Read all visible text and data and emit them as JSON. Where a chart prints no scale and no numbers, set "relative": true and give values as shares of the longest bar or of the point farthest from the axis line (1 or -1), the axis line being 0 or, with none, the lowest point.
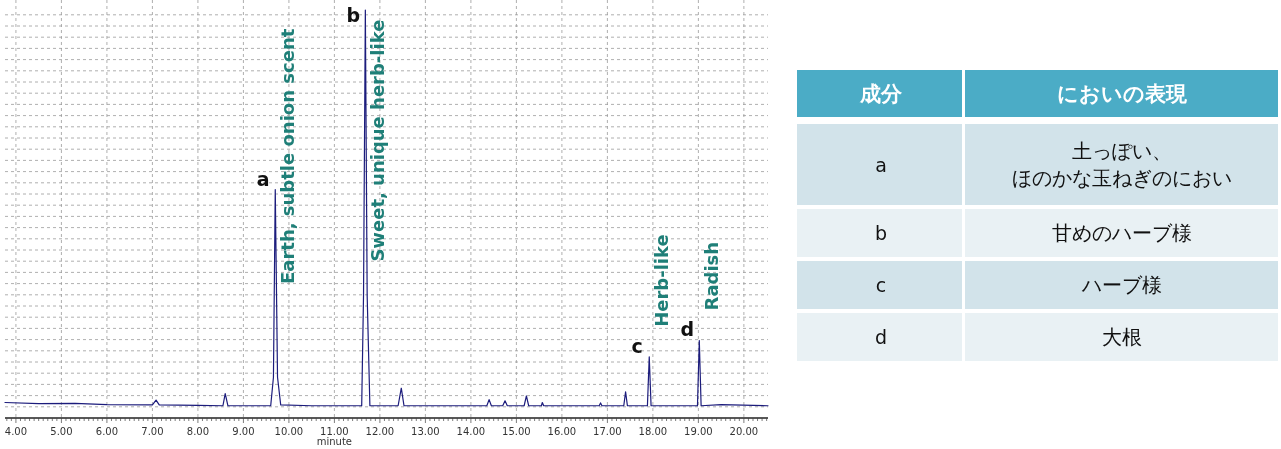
{
  "chart_data": [
    {
      "type": "line",
      "xlabel": "minute",
      "relative": true,
      "grid": true,
      "xlim": [
        3.76,
        20.53
      ],
      "xticks": [
        {
          "value": 4,
          "label": "4.00"
        },
        {
          "value": 5,
          "label": "5.00"
        },
        {
          "value": 6,
          "label": "6.00"
        },
        {
          "value": 7,
          "label": "7.00"
        },
        {
          "value": 8,
          "label": "8.00"
        },
        {
          "value": 9,
          "label": "9.00"
        },
        {
          "value": 10,
          "label": "10.00"
        },
        {
          "value": 11,
          "label": "11.00"
        },
        {
          "value": 12,
          "label": "12.00"
        },
        {
          "value": 13,
          "label": "13.00"
        },
        {
          "value": 14,
          "label": "14.00"
        },
        {
          "value": 15,
          "label": "15.00"
        },
        {
          "value": 16,
          "label": "16.00"
        },
        {
          "value": 17,
          "label": "17.00"
        },
        {
          "value": 18,
          "label": "18.00"
        },
        {
          "value": 19,
          "label": "19.00"
        },
        {
          "value": 20,
          "label": "20.00"
        }
      ],
      "x": [
        3.76,
        4.5,
        5.3,
        6.0,
        7.0,
        7.08,
        7.15,
        8.0,
        8.55,
        8.6,
        8.66,
        9.6,
        9.66,
        9.7,
        9.75,
        9.82,
        10.5,
        11.6,
        11.64,
        11.68,
        11.72,
        11.78,
        12.4,
        12.47,
        12.53,
        14.35,
        14.4,
        14.45,
        14.7,
        14.75,
        14.8,
        15.17,
        15.22,
        15.27,
        15.55,
        15.57,
        15.6,
        16.82,
        16.85,
        16.88,
        17.36,
        17.4,
        17.44,
        17.88,
        17.92,
        17.96,
        18.98,
        19.02,
        19.06,
        19.5,
        20.53
      ],
      "series": [
        {
          "color": "#1c1c7c",
          "values": [
            0.038,
            0.035,
            0.036,
            0.033,
            0.032,
            0.044,
            0.032,
            0.031,
            0.03,
            0.06,
            0.03,
            0.03,
            0.1,
            0.56,
            0.1,
            0.032,
            0.03,
            0.03,
            0.3,
            1.0,
            0.3,
            0.03,
            0.03,
            0.073,
            0.03,
            0.03,
            0.045,
            0.03,
            0.03,
            0.042,
            0.03,
            0.03,
            0.054,
            0.03,
            0.03,
            0.038,
            0.03,
            0.03,
            0.037,
            0.03,
            0.03,
            0.064,
            0.03,
            0.03,
            0.15,
            0.03,
            0.03,
            0.19,
            0.03,
            0.033,
            0.03
          ]
        }
      ],
      "annotations": [
        {
          "text": "a",
          "x": 9.7,
          "y": 0.56
        },
        {
          "text": "b",
          "x": 11.68,
          "y": 1.0
        },
        {
          "text": "c",
          "x": 17.92,
          "y": 0.15
        },
        {
          "text": "d",
          "x": 19.02,
          "y": 0.19
        },
        {
          "text": "Earth, subtle onion scent",
          "x": 9.7,
          "y": 0.56
        },
        {
          "text": "Sweet, unique herb-like",
          "x": 11.68,
          "y": 1.0
        },
        {
          "text": "Herb-like",
          "x": 17.92,
          "y": 0.15
        },
        {
          "text": "Radish",
          "x": 19.02,
          "y": 0.19
        }
      ]
    },
    {
      "type": "other",
      "xlabel": "成分",
      "ylabel": "においの表現",
      "categories": [
        "a",
        "b",
        "c",
        "d"
      ],
      "annotations": [
        "土っぽい、ほのかな玉ねぎのにおい",
        "甘めのハーブ様",
        "ハーブ様",
        "大根"
      ]
    }
  ]
}
